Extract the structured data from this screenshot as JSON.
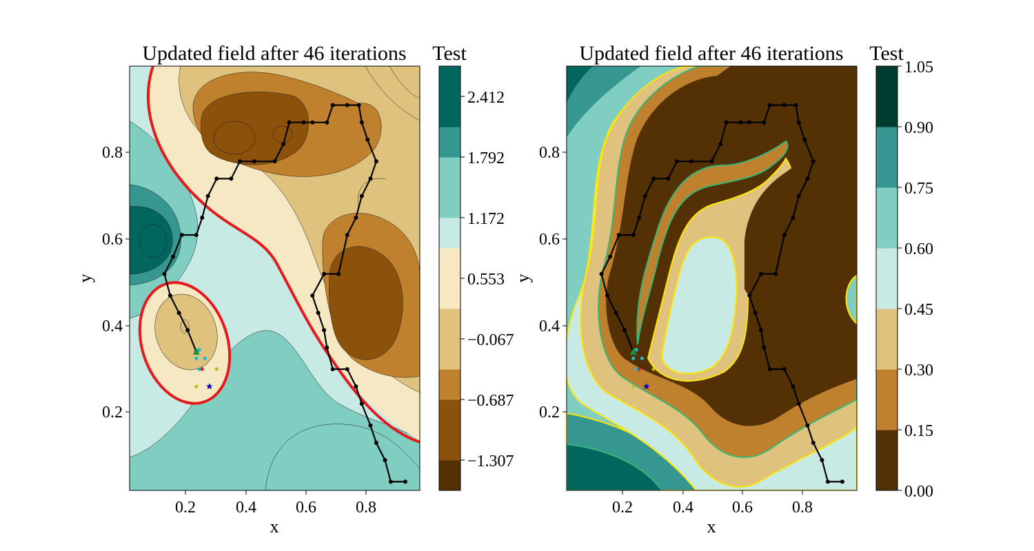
{
  "figure": {
    "panels": [
      {
        "title": "Updated field after 46 iterations",
        "colorbar_title": "Test",
        "xlabel": "x",
        "ylabel": "y",
        "x_ticks": [
          "0.2",
          "0.4",
          "0.6",
          "0.8"
        ],
        "y_ticks": [
          "0.2",
          "0.4",
          "0.6",
          "0.8"
        ],
        "colorbar_ticks": [
          "2.412",
          "1.792",
          "1.172",
          "0.553",
          "−0.067",
          "−0.687",
          "−1.307"
        ]
      },
      {
        "title": "Updated field after 46 iterations",
        "colorbar_title": "Test",
        "xlabel": "x",
        "ylabel": "y",
        "x_ticks": [
          "0.2",
          "0.4",
          "0.6",
          "0.8"
        ],
        "y_ticks": [
          "0.2",
          "0.4",
          "0.6",
          "0.8"
        ],
        "colorbar_ticks": [
          "1.05",
          "0.90",
          "0.75",
          "0.60",
          "0.45",
          "0.30",
          "0.15",
          "0.00"
        ]
      }
    ]
  },
  "chart_data": [
    {
      "type": "contour",
      "title": "Updated field after 46 iterations",
      "xlabel": "x",
      "ylabel": "y",
      "xlim": [
        0.0,
        1.0
      ],
      "ylim": [
        0.02,
        1.0
      ],
      "colorbar": {
        "label": "Test",
        "levels": [
          -1.617,
          -1.307,
          -0.997,
          -0.687,
          -0.377,
          -0.067,
          0.243,
          0.553,
          0.863,
          1.172,
          1.482,
          1.792,
          2.102,
          2.412,
          2.722
        ],
        "tick_values": [
          2.412,
          1.792,
          1.172,
          0.553,
          -0.067,
          -0.687,
          -1.307
        ],
        "band_colors": [
          "#543005",
          "#8c510a",
          "#8c510a",
          "#bf812d",
          "#dfc27d",
          "#dfc27d",
          "#f6e8c3",
          "#f6e8c3",
          "#c7eae5",
          "#80cdc1",
          "#80cdc1",
          "#35978f",
          "#01665e",
          "#01665e",
          "#003c30"
        ]
      },
      "highlight_contour_color": "#e41a1c",
      "path": {
        "color": "#000000",
        "points": [
          [
            0.95,
            0.04
          ],
          [
            0.9,
            0.04
          ],
          [
            0.88,
            0.09
          ],
          [
            0.85,
            0.13
          ],
          [
            0.83,
            0.17
          ],
          [
            0.8,
            0.22
          ],
          [
            0.78,
            0.26
          ],
          [
            0.75,
            0.3
          ],
          [
            0.7,
            0.3
          ],
          [
            0.68,
            0.35
          ],
          [
            0.67,
            0.39
          ],
          [
            0.65,
            0.43
          ],
          [
            0.63,
            0.47
          ],
          [
            0.67,
            0.52
          ],
          [
            0.72,
            0.52
          ],
          [
            0.75,
            0.61
          ],
          [
            0.78,
            0.65
          ],
          [
            0.8,
            0.7
          ],
          [
            0.83,
            0.74
          ],
          [
            0.85,
            0.78
          ],
          [
            0.82,
            0.83
          ],
          [
            0.8,
            0.87
          ],
          [
            0.79,
            0.91
          ],
          [
            0.75,
            0.91
          ],
          [
            0.7,
            0.91
          ],
          [
            0.68,
            0.87
          ],
          [
            0.63,
            0.87
          ],
          [
            0.6,
            0.87
          ],
          [
            0.55,
            0.87
          ],
          [
            0.53,
            0.82
          ],
          [
            0.5,
            0.78
          ],
          [
            0.43,
            0.78
          ],
          [
            0.38,
            0.78
          ],
          [
            0.35,
            0.74
          ],
          [
            0.3,
            0.74
          ],
          [
            0.27,
            0.7
          ],
          [
            0.25,
            0.65
          ],
          [
            0.23,
            0.61
          ],
          [
            0.18,
            0.61
          ],
          [
            0.15,
            0.56
          ],
          [
            0.12,
            0.52
          ],
          [
            0.14,
            0.47
          ],
          [
            0.17,
            0.43
          ],
          [
            0.2,
            0.39
          ],
          [
            0.23,
            0.34
          ]
        ]
      },
      "markers": [
        {
          "x": 0.23,
          "y": 0.34,
          "shape": "triangle",
          "color": "#1a9641"
        },
        {
          "x": 0.24,
          "y": 0.345,
          "shape": "dot",
          "color": "#17becf"
        },
        {
          "x": 0.23,
          "y": 0.325,
          "shape": "dot",
          "color": "#17becf"
        },
        {
          "x": 0.26,
          "y": 0.325,
          "shape": "dot",
          "color": "#17becf"
        },
        {
          "x": 0.24,
          "y": 0.3,
          "shape": "dot",
          "color": "#17becf"
        },
        {
          "x": 0.25,
          "y": 0.3,
          "shape": "dot",
          "color": "#d62728"
        },
        {
          "x": 0.3,
          "y": 0.3,
          "shape": "dot",
          "color": "#bcbd22"
        },
        {
          "x": 0.23,
          "y": 0.26,
          "shape": "dot",
          "color": "#bcbd22"
        },
        {
          "x": 0.275,
          "y": 0.26,
          "shape": "star",
          "color": "#0000cc"
        }
      ]
    },
    {
      "type": "contour",
      "title": "Updated field after 46 iterations",
      "xlabel": "x",
      "ylabel": "y",
      "xlim": [
        0.0,
        1.0
      ],
      "ylim": [
        0.02,
        1.0
      ],
      "colorbar": {
        "label": "Test",
        "levels": [
          0.0,
          0.15,
          0.3,
          0.45,
          0.6,
          0.75,
          0.9,
          1.05
        ],
        "tick_values": [
          1.05,
          0.9,
          0.75,
          0.6,
          0.45,
          0.3,
          0.15,
          0.0
        ],
        "band_colors": [
          "#543005",
          "#bf812d",
          "#dfc27d",
          "#c7eae5",
          "#80cdc1",
          "#35978f",
          "#003c30"
        ]
      },
      "contour_line_colors": [
        "#ffe600",
        "#35b779"
      ],
      "path": {
        "color": "#000000",
        "points": [
          [
            0.95,
            0.04
          ],
          [
            0.9,
            0.04
          ],
          [
            0.88,
            0.09
          ],
          [
            0.85,
            0.13
          ],
          [
            0.83,
            0.17
          ],
          [
            0.8,
            0.22
          ],
          [
            0.78,
            0.26
          ],
          [
            0.75,
            0.3
          ],
          [
            0.7,
            0.3
          ],
          [
            0.68,
            0.35
          ],
          [
            0.67,
            0.39
          ],
          [
            0.65,
            0.43
          ],
          [
            0.63,
            0.47
          ],
          [
            0.67,
            0.52
          ],
          [
            0.72,
            0.52
          ],
          [
            0.75,
            0.61
          ],
          [
            0.78,
            0.65
          ],
          [
            0.8,
            0.7
          ],
          [
            0.83,
            0.74
          ],
          [
            0.85,
            0.78
          ],
          [
            0.82,
            0.83
          ],
          [
            0.8,
            0.87
          ],
          [
            0.79,
            0.91
          ],
          [
            0.75,
            0.91
          ],
          [
            0.7,
            0.91
          ],
          [
            0.68,
            0.87
          ],
          [
            0.63,
            0.87
          ],
          [
            0.6,
            0.87
          ],
          [
            0.55,
            0.87
          ],
          [
            0.53,
            0.82
          ],
          [
            0.5,
            0.78
          ],
          [
            0.43,
            0.78
          ],
          [
            0.38,
            0.78
          ],
          [
            0.35,
            0.74
          ],
          [
            0.3,
            0.74
          ],
          [
            0.27,
            0.7
          ],
          [
            0.25,
            0.65
          ],
          [
            0.23,
            0.61
          ],
          [
            0.18,
            0.61
          ],
          [
            0.15,
            0.56
          ],
          [
            0.12,
            0.52
          ],
          [
            0.14,
            0.47
          ],
          [
            0.17,
            0.43
          ],
          [
            0.2,
            0.39
          ],
          [
            0.23,
            0.34
          ]
        ]
      },
      "markers": [
        {
          "x": 0.23,
          "y": 0.34,
          "shape": "triangle",
          "color": "#1a9641"
        },
        {
          "x": 0.24,
          "y": 0.345,
          "shape": "dot",
          "color": "#17becf"
        },
        {
          "x": 0.23,
          "y": 0.325,
          "shape": "dot",
          "color": "#17becf"
        },
        {
          "x": 0.26,
          "y": 0.325,
          "shape": "dot",
          "color": "#17becf"
        },
        {
          "x": 0.24,
          "y": 0.3,
          "shape": "dot",
          "color": "#17becf"
        },
        {
          "x": 0.25,
          "y": 0.3,
          "shape": "dot",
          "color": "#d62728"
        },
        {
          "x": 0.3,
          "y": 0.3,
          "shape": "dot",
          "color": "#bcbd22"
        },
        {
          "x": 0.23,
          "y": 0.26,
          "shape": "dot",
          "color": "#bcbd22"
        },
        {
          "x": 0.275,
          "y": 0.26,
          "shape": "star",
          "color": "#0000cc"
        }
      ]
    }
  ]
}
